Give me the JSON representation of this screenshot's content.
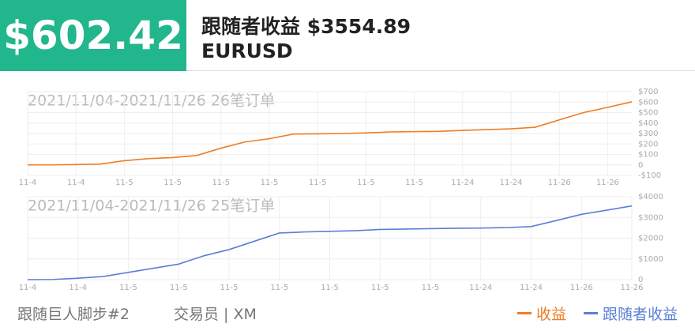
{
  "profit": "$602.42",
  "follower_label": "跟随者收益",
  "follower_profit": "$3554.89",
  "symbol": "EURUSD",
  "footer": {
    "strategy": "跟随巨人脚步#2",
    "trader": "交易员 | XM"
  },
  "chart_data": [
    {
      "type": "line",
      "title": "2021/11/04-2021/11/26 26笔订单",
      "categories": [
        "11-4",
        null,
        "11-4",
        null,
        "11-5",
        null,
        "11-5",
        null,
        "11-5",
        null,
        "11-5",
        null,
        "11-5",
        null,
        "11-5",
        null,
        "11-5",
        null,
        "11-24",
        null,
        "11-24",
        null,
        "11-26",
        null,
        "11-26",
        null
      ],
      "series": [
        {
          "name": "收益",
          "color": "#f07c22",
          "values": [
            0,
            0,
            3,
            8,
            40,
            60,
            70,
            90,
            160,
            220,
            250,
            295,
            297,
            300,
            305,
            315,
            318,
            320,
            330,
            337,
            345,
            360,
            430,
            500,
            550,
            602.42
          ]
        }
      ],
      "ylim": [
        -100,
        700
      ],
      "yticks": [
        {
          "value": -100,
          "label": "-$100"
        },
        0,
        {
          "value": 100,
          "label": "$100"
        },
        {
          "value": 200,
          "label": "$200"
        },
        {
          "value": 300,
          "label": "$300"
        },
        {
          "value": 400,
          "label": "$400"
        },
        {
          "value": 500,
          "label": "$500"
        },
        {
          "value": 600,
          "label": "$600"
        },
        {
          "value": 700,
          "label": "$700"
        }
      ],
      "grid": true
    },
    {
      "type": "line",
      "title": "2021/11/04-2021/11/26 25笔订单",
      "categories": [
        "11-4",
        null,
        "11-4",
        null,
        "11-5",
        null,
        "11-5",
        null,
        "11-5",
        null,
        "11-5",
        null,
        "11-5",
        null,
        "11-5",
        null,
        "11-5",
        null,
        "11-24",
        null,
        "11-24",
        null,
        "11-26",
        null,
        "11-26"
      ],
      "series": [
        {
          "name": "跟随者收益",
          "color": "#5b7fd6",
          "values": [
            0,
            10,
            70,
            150,
            350,
            550,
            750,
            1150,
            1450,
            1850,
            2250,
            2300,
            2330,
            2360,
            2420,
            2440,
            2460,
            2480,
            2490,
            2510,
            2560,
            2850,
            3150,
            3350,
            3554.89
          ]
        }
      ],
      "ylim": [
        0,
        4000
      ],
      "yticks": [
        0,
        {
          "value": 1000,
          "label": "$1000"
        },
        {
          "value": 2000,
          "label": "$2000"
        },
        {
          "value": 3000,
          "label": "$3000"
        },
        {
          "value": 4000,
          "label": "$4000"
        }
      ],
      "grid": true
    }
  ]
}
